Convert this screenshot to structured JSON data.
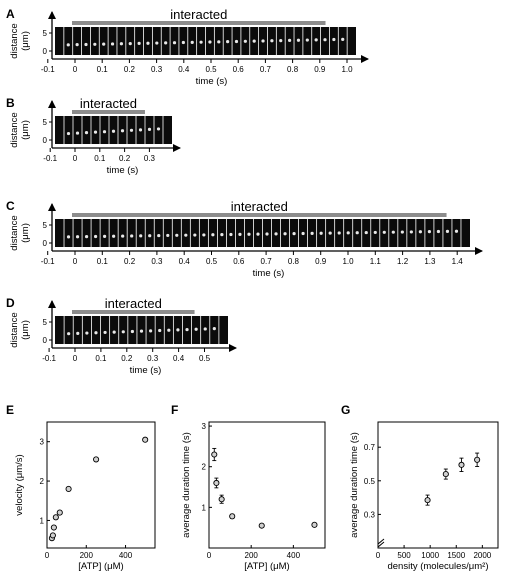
{
  "kymographs": [
    {
      "panel": "A",
      "ylabel": "distance",
      "yunit": "(μm)",
      "yticks": [
        "0",
        "5"
      ],
      "xlabel": "time (s)",
      "xticks": [
        "-0.1",
        "0",
        "0.1",
        "0.2",
        "0.3",
        "0.4",
        "0.5",
        "0.6",
        "0.7",
        "0.8",
        "0.9",
        "1.0"
      ],
      "bar_label": "interacted",
      "xmin": -0.1,
      "xmax": 1.0,
      "bar_start": 0.0,
      "bar_end": 0.91,
      "frames": 34
    },
    {
      "panel": "B",
      "ylabel": "distance",
      "yunit": "(μm)",
      "yticks": [
        "0",
        "5"
      ],
      "xlabel": "time (s)",
      "xticks": [
        "-0.1",
        "0",
        "0.1",
        "0.2",
        "0.3"
      ],
      "bar_label": "interacted",
      "xmin": -0.1,
      "xmax": 0.3,
      "bar_start": 0.0,
      "bar_end": 0.27,
      "frames": 13
    },
    {
      "panel": "C",
      "ylabel": "distance",
      "yunit": "(μm)",
      "yticks": [
        "0",
        "5"
      ],
      "xlabel": "time (s)",
      "xticks": [
        "-0.1",
        "0",
        "0.1",
        "0.2",
        "0.3",
        "0.4",
        "0.5",
        "0.6",
        "0.7",
        "0.8",
        "0.9",
        "1.0",
        "1.1",
        "1.2",
        "1.3",
        "1.4"
      ],
      "bar_label": "interacted",
      "xmin": -0.1,
      "xmax": 1.4,
      "bar_start": 0.0,
      "bar_end": 1.35,
      "frames": 46
    },
    {
      "panel": "D",
      "ylabel": "distance",
      "yunit": "(μm)",
      "yticks": [
        "0",
        "5"
      ],
      "xlabel": "time (s)",
      "xticks": [
        "-0.1",
        "0",
        "0.1",
        "0.2",
        "0.3",
        "0.4",
        "0.5"
      ],
      "bar_label": "interacted",
      "xmin": -0.1,
      "xmax": 0.5,
      "bar_start": 0.0,
      "bar_end": 0.45,
      "frames": 19
    }
  ],
  "chart_data": [
    {
      "panel": "E",
      "type": "scatter",
      "xlabel": "[ATP] (μM)",
      "ylabel": "velocity (μm/s)",
      "xlim": [
        0,
        550
      ],
      "ylim": [
        0.3,
        3.5
      ],
      "xticks": [
        0,
        200,
        400
      ],
      "yticks": [
        1,
        2,
        3
      ],
      "points": [
        {
          "x": 25,
          "y": 0.55
        },
        {
          "x": 30,
          "y": 0.62
        },
        {
          "x": 35,
          "y": 0.82
        },
        {
          "x": 45,
          "y": 1.08
        },
        {
          "x": 65,
          "y": 1.2
        },
        {
          "x": 110,
          "y": 1.8
        },
        {
          "x": 250,
          "y": 2.55
        },
        {
          "x": 500,
          "y": 3.05
        }
      ]
    },
    {
      "panel": "F",
      "type": "scatter",
      "xlabel": "[ATP] (μM)",
      "ylabel": "average duration time (s)",
      "xlim": [
        0,
        550
      ],
      "ylim": [
        0,
        3.1
      ],
      "xticks": [
        0,
        200,
        400
      ],
      "yticks": [
        1,
        2,
        3
      ],
      "points": [
        {
          "x": 25,
          "y": 2.3,
          "err": 0.15
        },
        {
          "x": 35,
          "y": 1.6,
          "err": 0.12
        },
        {
          "x": 60,
          "y": 1.2,
          "err": 0.1
        },
        {
          "x": 110,
          "y": 0.78,
          "err": 0.05
        },
        {
          "x": 250,
          "y": 0.55,
          "err": 0.03
        },
        {
          "x": 500,
          "y": 0.57,
          "err": 0.03
        }
      ]
    },
    {
      "panel": "G",
      "type": "scatter",
      "xlabel": "density (molecules/μm²)",
      "ylabel": "average duration time (s)",
      "xlim": [
        0,
        2300
      ],
      "ylim": [
        0.1,
        0.85
      ],
      "xticks": [
        0,
        500,
        1000,
        1500,
        2000
      ],
      "yticks": [
        0.3,
        0.5,
        0.7
      ],
      "points": [
        {
          "x": 950,
          "y": 0.385,
          "err": 0.03
        },
        {
          "x": 1300,
          "y": 0.54,
          "err": 0.03
        },
        {
          "x": 1600,
          "y": 0.595,
          "err": 0.04
        },
        {
          "x": 1900,
          "y": 0.625,
          "err": 0.04
        }
      ]
    }
  ]
}
